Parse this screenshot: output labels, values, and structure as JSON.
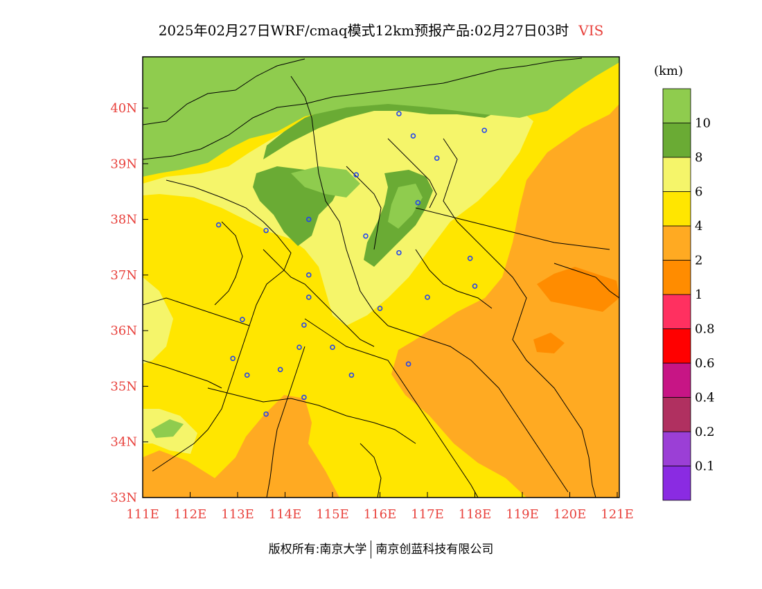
{
  "title": {
    "main": "2025年02月27日WRF/cmaq模式12km预报产品:02月27日03时",
    "variable": "VIS"
  },
  "map": {
    "lon_range": [
      111,
      121.4
    ],
    "lat_range": [
      33,
      41
    ],
    "x_ticks": [
      "111E",
      "112E",
      "113E",
      "114E",
      "115E",
      "116E",
      "117E",
      "118E",
      "119E",
      "120E",
      "121E"
    ],
    "y_ticks": [
      "33N",
      "34N",
      "35N",
      "36N",
      "37N",
      "38N",
      "39N",
      "40N"
    ],
    "cities": [
      [
        116.4,
        39.9
      ],
      [
        116.7,
        39.5
      ],
      [
        117.2,
        39.1
      ],
      [
        118.2,
        39.6
      ],
      [
        115.5,
        38.8
      ],
      [
        116.8,
        38.3
      ],
      [
        114.5,
        38.0
      ],
      [
        115.7,
        37.7
      ],
      [
        113.6,
        37.8
      ],
      [
        112.6,
        37.9
      ],
      [
        116.4,
        37.4
      ],
      [
        117.9,
        37.3
      ],
      [
        114.5,
        37.0
      ],
      [
        114.5,
        36.6
      ],
      [
        117.0,
        36.6
      ],
      [
        118.0,
        36.8
      ],
      [
        116.0,
        36.4
      ],
      [
        113.1,
        36.2
      ],
      [
        114.4,
        36.1
      ],
      [
        115.0,
        35.7
      ],
      [
        114.3,
        35.7
      ],
      [
        116.6,
        35.4
      ],
      [
        112.9,
        35.5
      ],
      [
        113.2,
        35.2
      ],
      [
        113.9,
        35.3
      ],
      [
        115.4,
        35.2
      ],
      [
        114.4,
        34.8
      ],
      [
        113.6,
        34.5
      ]
    ]
  },
  "colorbar": {
    "unit": "(km)",
    "colors": [
      "#8a2be2",
      "#9b3fd6",
      "#b03060",
      "#c71585",
      "#ff0000",
      "#ff3060",
      "#ff8c00",
      "#ffaa22",
      "#ffe600",
      "#f5f56a",
      "#6aab34",
      "#8fcc4e"
    ],
    "labels": [
      "0.1",
      "0.2",
      "0.4",
      "0.6",
      "0.8",
      "1",
      "2",
      "4",
      "6",
      "8",
      "10"
    ]
  },
  "footer": {
    "left": "版权所有:南京大学",
    "right": "南京创蓝科技有限公司"
  }
}
